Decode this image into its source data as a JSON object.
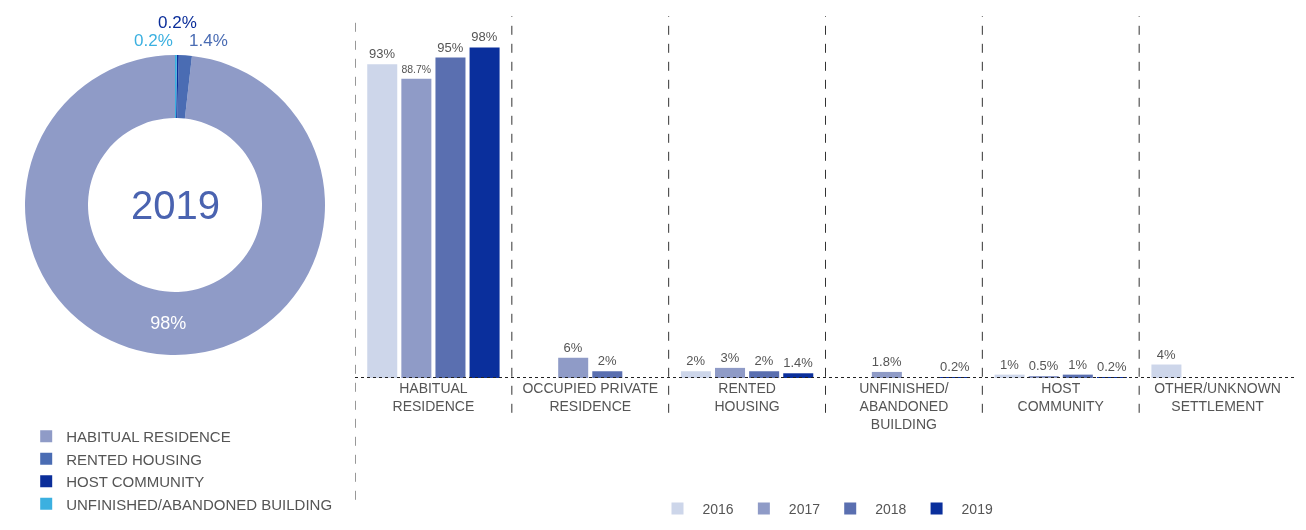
{
  "chart_data": [
    {
      "type": "donut",
      "categories": [
        "HABITUAL RESIDENCE",
        "RENTED HOUSING",
        "HOST COMMUNITY",
        "UNFINISHED/ABANDONED BUILDING"
      ],
      "values": [
        98,
        1.4,
        0.2,
        0.2
      ],
      "colors": [
        "#8f9bc7",
        "#4a6cb3",
        "#0b2e9a",
        "#3bb0e0"
      ],
      "value_labels": [
        "98%",
        "1.4%",
        "0.2%",
        "0.2%"
      ],
      "annotations": [
        "2019"
      ],
      "legend": "bottom"
    },
    {
      "type": "bar",
      "categories": [
        "HABITUAL\nRESIDENCE",
        "OCCUPIED PRIVATE\nRESIDENCE",
        "RENTED\nHOUSING",
        "UNFINISHED/\nABANDONED\nBUILDING",
        "HOST\nCOMMUNITY",
        "OTHER/UNKNOWN\nSETTLEMENT"
      ],
      "series": [
        {
          "name": "2016",
          "color": "#cdd6ea",
          "values": [
            93,
            null,
            2,
            null,
            1,
            4
          ],
          "value_labels": [
            "93%",
            null,
            "2%",
            null,
            "1%",
            "4%"
          ]
        },
        {
          "name": "2017",
          "color": "#8f9bc7",
          "values": [
            88.7,
            6,
            3,
            1.8,
            0.5,
            null
          ],
          "value_labels": [
            "88.7%",
            "6%",
            "3%",
            "1.8%",
            "0.5%",
            null
          ]
        },
        {
          "name": "2018",
          "color": "#5a6fb0",
          "values": [
            95,
            2,
            2,
            null,
            1,
            null
          ],
          "value_labels": [
            "95%",
            "2%",
            "2%",
            null,
            "1%",
            null
          ]
        },
        {
          "name": "2019",
          "color": "#0a2f9c",
          "values": [
            98,
            null,
            1.4,
            0.2,
            0.2,
            null
          ],
          "value_labels": [
            "98%",
            null,
            "1.4%",
            "0.2%",
            "0.2%",
            null
          ]
        }
      ],
      "legend": "bottom",
      "tick_labels": "x",
      "grid": false
    }
  ]
}
